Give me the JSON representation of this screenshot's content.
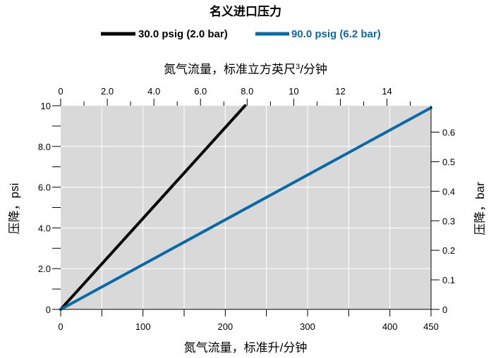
{
  "chart_data": {
    "type": "line",
    "title": "名义进口压力",
    "legend_position": "top",
    "grid": true,
    "x_bottom": {
      "label": "氮气流量，标准升/分钟",
      "range": [
        0,
        450
      ],
      "ticks": [
        {
          "value": 0,
          "label": "0"
        },
        {
          "value": 100,
          "label": "100"
        },
        {
          "value": 200,
          "label": "200"
        },
        {
          "value": 300,
          "label": "300"
        },
        {
          "value": 400,
          "label": "400"
        },
        {
          "value": 450,
          "label": "450"
        }
      ],
      "minor_ticks": [
        50,
        150,
        250,
        350
      ]
    },
    "x_top": {
      "label_main": "氮气流量，标准立方英尺",
      "label_sup": "3",
      "label_tail": "/分钟",
      "range": [
        0,
        15.89
      ],
      "ticks": [
        {
          "value": 0,
          "label": "0"
        },
        {
          "value": 2,
          "label": "2.0"
        },
        {
          "value": 4,
          "label": "4.0"
        },
        {
          "value": 6,
          "label": "6.0"
        },
        {
          "value": 8,
          "label": "8.0"
        },
        {
          "value": 10,
          "label": "10"
        },
        {
          "value": 12,
          "label": "12"
        },
        {
          "value": 14,
          "label": "14"
        }
      ],
      "minor_ticks": [
        1,
        3,
        5,
        7,
        9,
        11,
        13,
        15
      ]
    },
    "y_left": {
      "label": "压降，psi",
      "range": [
        0,
        10
      ],
      "ticks": [
        {
          "value": 0,
          "label": "0"
        },
        {
          "value": 2,
          "label": "2.0"
        },
        {
          "value": 4,
          "label": "4.0"
        },
        {
          "value": 6,
          "label": "6.0"
        },
        {
          "value": 8,
          "label": "8.0"
        },
        {
          "value": 10,
          "label": "10"
        }
      ],
      "minor_ticks": [
        1,
        3,
        5,
        7,
        9
      ]
    },
    "y_right": {
      "label": "压降，bar",
      "range": [
        0,
        0.6895
      ],
      "ticks": [
        {
          "value": 0,
          "label": "0"
        },
        {
          "value": 0.1,
          "label": "0.1"
        },
        {
          "value": 0.2,
          "label": "0.2"
        },
        {
          "value": 0.3,
          "label": "0.3"
        },
        {
          "value": 0.4,
          "label": "0.4"
        },
        {
          "value": 0.5,
          "label": "0.5"
        },
        {
          "value": 0.6,
          "label": "0.6"
        }
      ]
    },
    "series": [
      {
        "name": "30.0 psig (2.0 bar)",
        "color": "#000000",
        "x": [
          0,
          224
        ],
        "y": [
          0,
          10
        ]
      },
      {
        "name": "90.0 psig (6.2 bar)",
        "color": "#0a6aa8",
        "x": [
          0,
          450
        ],
        "y": [
          0,
          9.9
        ]
      }
    ]
  }
}
